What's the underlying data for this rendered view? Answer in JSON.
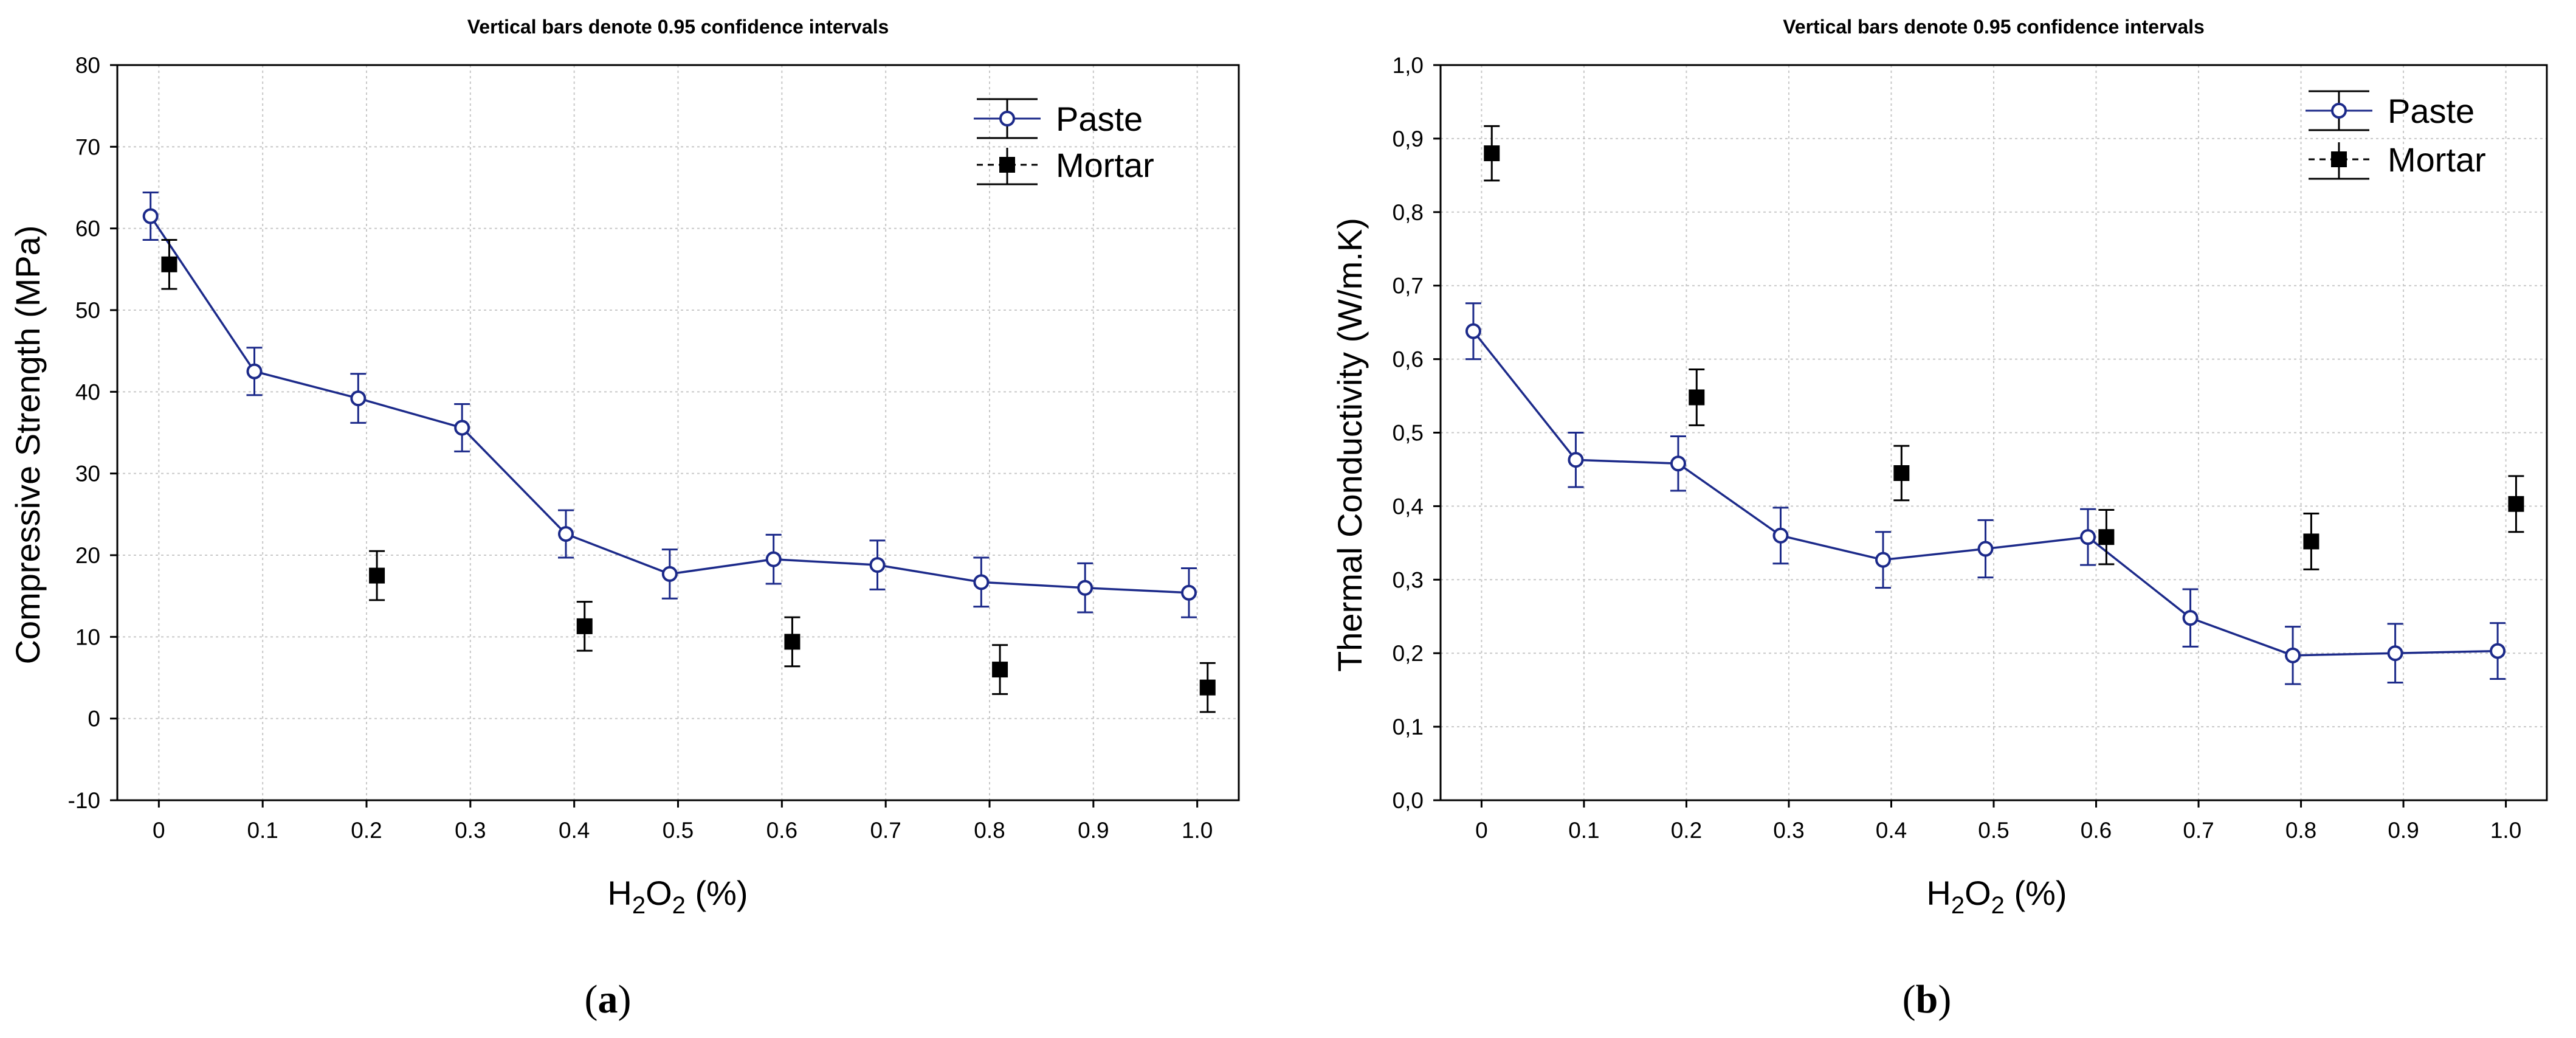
{
  "chart_data": [
    {
      "type": "line",
      "panel_label": "a",
      "title": "Vertical bars denote 0.95 confidence intervals",
      "xlabel": {
        "base": "H",
        "sub1": "2",
        "mid": "O",
        "sub2": "2",
        "suffix": " (%)"
      },
      "ylabel": "Compressive Strength (MPa)",
      "xlim": [
        -0.04,
        1.04
      ],
      "ylim": [
        -10,
        80
      ],
      "yticks": [
        -10,
        0,
        10,
        20,
        30,
        40,
        50,
        60,
        70,
        80
      ],
      "ytick_labels": [
        "-10",
        "0",
        "10",
        "20",
        "30",
        "40",
        "50",
        "60",
        "70",
        "80"
      ],
      "xticks": [
        0,
        0.1,
        0.2,
        0.3,
        0.4,
        0.5,
        0.6,
        0.7,
        0.8,
        0.9,
        1.0
      ],
      "xtick_labels": [
        "0",
        "0.1",
        "0.2",
        "0.3",
        "0.4",
        "0.5",
        "0.6",
        "0.7",
        "0.8",
        "0.9",
        "1.0"
      ],
      "grid": true,
      "legend": "top-right",
      "series": [
        {
          "name": "Paste",
          "marker": "open-circle",
          "line": true,
          "color": "#1c2a8a",
          "x": [
            0,
            0.1,
            0.2,
            0.3,
            0.4,
            0.5,
            0.6,
            0.7,
            0.8,
            0.9,
            1.0
          ],
          "values": [
            61.5,
            42.5,
            39.2,
            35.6,
            22.6,
            17.7,
            19.5,
            18.8,
            16.7,
            16.0,
            15.4
          ],
          "err": [
            2.9,
            2.9,
            3.0,
            2.9,
            2.9,
            3.0,
            3.0,
            3.0,
            3.0,
            3.0,
            3.0
          ]
        },
        {
          "name": "Mortar",
          "marker": "filled-square",
          "line": false,
          "color": "#000000",
          "x": [
            0,
            0.2,
            0.4,
            0.6,
            0.8,
            1.0
          ],
          "values": [
            55.6,
            17.5,
            11.3,
            9.4,
            6.0,
            3.8
          ],
          "err": [
            3.0,
            3.0,
            3.0,
            3.0,
            3.0,
            3.0
          ]
        }
      ]
    },
    {
      "type": "line",
      "panel_label": "b",
      "title": "Vertical bars denote 0.95 confidence intervals",
      "xlabel": {
        "base": "H",
        "sub1": "2",
        "mid": "O",
        "sub2": "2",
        "suffix": " (%)"
      },
      "ylabel": "Thermal Conductivity (W/m.K)",
      "xlim": [
        -0.04,
        1.04
      ],
      "ylim": [
        0,
        1.0
      ],
      "yticks": [
        0,
        0.1,
        0.2,
        0.3,
        0.4,
        0.5,
        0.6,
        0.7,
        0.8,
        0.9,
        1.0
      ],
      "ytick_labels": [
        "0,0",
        "0,1",
        "0,2",
        "0,3",
        "0,4",
        "0,5",
        "0,6",
        "0,7",
        "0,8",
        "0,9",
        "1,0"
      ],
      "xticks": [
        0,
        0.1,
        0.2,
        0.3,
        0.4,
        0.5,
        0.6,
        0.7,
        0.8,
        0.9,
        1.0
      ],
      "xtick_labels": [
        "0",
        "0.1",
        "0.2",
        "0.3",
        "0.4",
        "0.5",
        "0.6",
        "0.7",
        "0.8",
        "0.9",
        "1.0"
      ],
      "grid": true,
      "legend": "top-right",
      "series": [
        {
          "name": "Paste",
          "marker": "open-circle",
          "line": true,
          "color": "#1c2a8a",
          "x": [
            0,
            0.1,
            0.2,
            0.3,
            0.4,
            0.5,
            0.6,
            0.7,
            0.8,
            0.9,
            1.0
          ],
          "values": [
            0.638,
            0.463,
            0.458,
            0.36,
            0.327,
            0.342,
            0.358,
            0.248,
            0.197,
            0.2,
            0.203
          ],
          "err": [
            0.038,
            0.037,
            0.037,
            0.038,
            0.038,
            0.039,
            0.038,
            0.039,
            0.039,
            0.04,
            0.038
          ]
        },
        {
          "name": "Mortar",
          "marker": "filled-square",
          "line": false,
          "color": "#000000",
          "x": [
            0,
            0.2,
            0.4,
            0.6,
            0.8,
            1.0
          ],
          "values": [
            0.88,
            0.548,
            0.445,
            0.358,
            0.352,
            0.403
          ],
          "err": [
            0.037,
            0.038,
            0.037,
            0.037,
            0.038,
            0.038
          ]
        }
      ]
    }
  ]
}
